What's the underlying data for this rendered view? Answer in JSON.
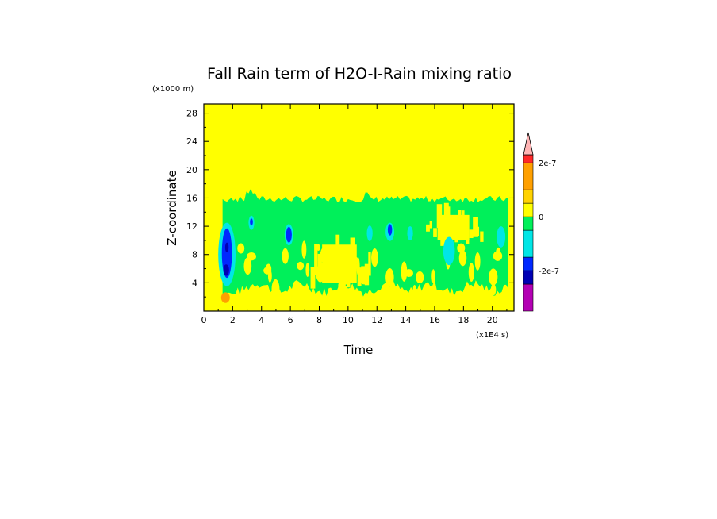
{
  "chart_data": {
    "type": "heatmap",
    "title": "Fall Rain term of H2O-I-Rain mixing ratio",
    "xlabel": "Time",
    "ylabel": "Z-coordinate",
    "x_multiplier": "(x1E4 s)",
    "y_multiplier": "(x1000 m)",
    "xlim": [
      0,
      21.5
    ],
    "ylim": [
      0,
      29.3
    ],
    "x_ticks": [
      "0",
      "2",
      "4",
      "6",
      "8",
      "10",
      "12",
      "14",
      "16",
      "18",
      "20"
    ],
    "y_ticks": [
      "4",
      "8",
      "12",
      "16",
      "20",
      "24",
      "28"
    ],
    "colorbar": {
      "levels": [
        "-3e-7",
        "-2e-7",
        "-1e-7",
        "0",
        "1e-7",
        "2e-7"
      ],
      "labels": [
        {
          "text": "2e-7",
          "value": 2e-07
        },
        {
          "text": "0",
          "value": 0
        },
        {
          "text": "-2e-7",
          "value": -2e-07
        }
      ],
      "bands": [
        {
          "from": -3.5e-07,
          "to": -2.5e-07,
          "color": "#b400b4"
        },
        {
          "from": -2.5e-07,
          "to": -2e-07,
          "color": "#0000b4"
        },
        {
          "from": -2e-07,
          "to": -1.5e-07,
          "color": "#0028ff"
        },
        {
          "from": -1.5e-07,
          "to": -5e-08,
          "color": "#00e6e6"
        },
        {
          "from": -5e-08,
          "to": 0,
          "color": "#00f05a"
        },
        {
          "from": 0,
          "to": 5e-08,
          "color": "#ffff00"
        },
        {
          "from": 5e-08,
          "to": 1e-07,
          "color": "#ffd200"
        },
        {
          "from": 1e-07,
          "to": 2e-07,
          "color": "#ffa000"
        },
        {
          "from": 2e-07,
          "to": 2.3e-07,
          "color": "#ff2828"
        }
      ],
      "extend_color": "#ffb4b4"
    },
    "background_color": "#ffff00",
    "regions": [
      {
        "level": "green",
        "color": "#00f05a",
        "x": [
          1.3,
          21.2
        ],
        "z": [
          2.3,
          16.3
        ],
        "note_x_start_low_band": 0.0
      },
      {
        "level": "yellow_gap",
        "color": "#ffff00",
        "x": [
          8.2,
          10.6
        ],
        "z": [
          4.0,
          9.4
        ]
      },
      {
        "level": "yellow_gap",
        "color": "#ffff00",
        "x": [
          16.2,
          18.4
        ],
        "z": [
          10.0,
          13.6
        ]
      },
      {
        "level": "cyan",
        "color": "#00e6e6",
        "cells": [
          [
            1.6,
            8.0,
            0.6,
            9.0
          ],
          [
            3.3,
            12.5,
            0.2,
            2.0
          ],
          [
            5.9,
            10.8,
            0.3,
            3.0
          ],
          [
            11.5,
            11.0,
            0.2,
            2.2
          ],
          [
            12.9,
            11.2,
            0.3,
            2.6
          ],
          [
            14.3,
            11.0,
            0.2,
            2.0
          ],
          [
            17.0,
            8.5,
            0.4,
            4.0
          ],
          [
            20.6,
            10.5,
            0.3,
            3.0
          ]
        ]
      },
      {
        "level": "blue",
        "color": "#0028ff",
        "cells": [
          [
            1.6,
            8.2,
            0.35,
            7.0
          ],
          [
            5.9,
            10.8,
            0.2,
            2.2
          ],
          [
            12.9,
            11.5,
            0.15,
            1.6
          ],
          [
            3.3,
            12.6,
            0.1,
            1.0
          ]
        ]
      },
      {
        "level": "darkblue",
        "color": "#0000b4",
        "cells": [
          [
            1.55,
            5.8,
            0.2,
            1.6
          ],
          [
            1.6,
            9.0,
            0.12,
            1.4
          ]
        ]
      },
      {
        "level": "orange",
        "color": "#ffa000",
        "cells": [
          [
            1.5,
            1.9,
            0.3,
            1.5
          ]
        ]
      }
    ]
  }
}
